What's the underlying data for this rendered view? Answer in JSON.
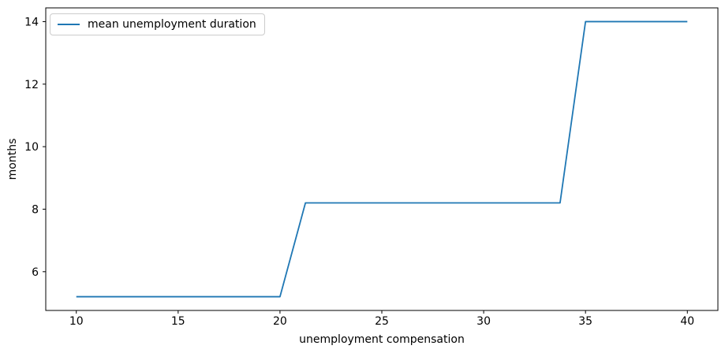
{
  "chart_data": {
    "type": "line",
    "title": "",
    "xlabel": "unemployment compensation",
    "ylabel": "months",
    "xlim": [
      8.5,
      41.5
    ],
    "ylim": [
      4.76,
      14.44
    ],
    "x_ticks": [
      10,
      15,
      20,
      25,
      30,
      35,
      40
    ],
    "y_ticks": [
      6,
      8,
      10,
      12,
      14
    ],
    "grid": false,
    "legend_position": "upper left",
    "background_color": "#ffffff",
    "spine_color": "#000000",
    "series": [
      {
        "name": "mean unemployment duration",
        "color": "#1f77b4",
        "points": [
          [
            10,
            5.2
          ],
          [
            20,
            5.2
          ],
          [
            21.25,
            8.2
          ],
          [
            33.75,
            8.2
          ],
          [
            35,
            14
          ],
          [
            40,
            14
          ]
        ]
      }
    ]
  }
}
